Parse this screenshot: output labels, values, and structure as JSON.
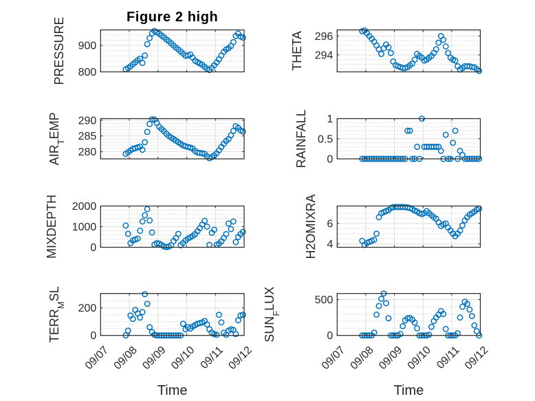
{
  "chart_data": {
    "type": "scatter",
    "title": "Figure 2 high",
    "xlabel": "Time",
    "xlim": [
      7,
      12
    ],
    "xticks": [
      7,
      8,
      9,
      10,
      11,
      12
    ],
    "xtick_labels": [
      "09/07",
      "09/08",
      "09/09",
      "09/10",
      "09/11",
      "09/12"
    ],
    "grid": true,
    "legend": "none",
    "marker": "open-circle",
    "color": "#0072BD",
    "x": [
      7.875,
      7.958,
      8.042,
      8.125,
      8.208,
      8.292,
      8.375,
      8.458,
      8.542,
      8.625,
      8.708,
      8.792,
      8.875,
      8.958,
      9.042,
      9.125,
      9.208,
      9.292,
      9.375,
      9.458,
      9.542,
      9.625,
      9.708,
      9.792,
      9.875,
      9.958,
      10.042,
      10.125,
      10.208,
      10.292,
      10.375,
      10.458,
      10.542,
      10.625,
      10.708,
      10.792,
      10.875,
      10.958,
      11.042,
      11.125,
      11.208,
      11.292,
      11.375,
      11.458,
      11.542,
      11.625,
      11.708,
      11.792,
      11.875,
      11.958
    ],
    "panels": [
      {
        "ylabel": {
          "text": "PRESSURE"
        },
        "ylim": [
          800,
          959
        ],
        "yticks": [
          800,
          900
        ],
        "ytick_labels": [
          "800",
          "900"
        ],
        "values": [
          810,
          815,
          821,
          829,
          836,
          844,
          850,
          834,
          862,
          905,
          928,
          946,
          955,
          950,
          945,
          938,
          931,
          923,
          916,
          908,
          900,
          892,
          885,
          877,
          869,
          861,
          862,
          866,
          854,
          842,
          837,
          832,
          827,
          819,
          812,
          807,
          815,
          825,
          836,
          848,
          862,
          876,
          885,
          890,
          898,
          913,
          936,
          945,
          934,
          930
        ]
      },
      {
        "ylabel": {
          "text": "THETA"
        },
        "ylim": [
          292.2,
          296.65
        ],
        "yticks": [
          294,
          296
        ],
        "ytick_labels": [
          "294",
          "296"
        ],
        "values": [
          296.5,
          296.6,
          296.3,
          296.0,
          295.7,
          295.4,
          295.0,
          294.6,
          294.1,
          294.7,
          295.1,
          294.8,
          294.2,
          293.3,
          292.9,
          292.8,
          292.7,
          292.6,
          292.6,
          292.7,
          292.9,
          293.1,
          293.5,
          294.1,
          293.9,
          293.7,
          293.4,
          293.5,
          293.7,
          293.9,
          294.2,
          294.6,
          295.3,
          296.0,
          295.6,
          294.9,
          294.2,
          293.7,
          293.5,
          293.4,
          292.8,
          292.45,
          292.6,
          292.8,
          292.8,
          292.8,
          292.7,
          292.7,
          292.5,
          292.3
        ]
      },
      {
        "ylabel": {
          "text": "AIR",
          "sub": "T",
          "tail": "EMP"
        },
        "ylim": [
          277.7,
          290.5
        ],
        "yticks": [
          280,
          285,
          290
        ],
        "ytick_labels": [
          "280",
          "285",
          "290"
        ],
        "values": [
          279.3,
          279.8,
          280.4,
          280.9,
          281.1,
          281.4,
          281.6,
          280.6,
          283.0,
          286.3,
          288.8,
          290.3,
          290.2,
          289.1,
          287.9,
          287.2,
          286.5,
          285.7,
          285.0,
          284.5,
          284.0,
          283.5,
          283.0,
          282.5,
          282.0,
          281.7,
          281.5,
          281.3,
          281.0,
          280.2,
          279.7,
          279.6,
          279.5,
          279.3,
          278.5,
          277.9,
          278.3,
          278.8,
          279.5,
          280.4,
          281.5,
          282.5,
          283.4,
          284.0,
          285.2,
          286.6,
          288.1,
          287.6,
          286.8,
          286.4
        ]
      },
      {
        "ylabel": {
          "text": "RAINFALL"
        },
        "ylim": [
          0,
          1
        ],
        "yticks": [
          0,
          0.5,
          1
        ],
        "ytick_labels": [
          "0",
          "0.5",
          "1"
        ],
        "values": [
          0,
          0,
          0,
          0,
          0,
          0,
          0,
          0,
          0,
          0,
          0,
          0,
          0,
          0,
          0,
          0,
          0,
          0,
          0,
          0.7,
          0.7,
          0,
          0,
          0.3,
          0,
          1.0,
          0.3,
          0.3,
          0.3,
          0.3,
          0.3,
          0.3,
          0.3,
          0.2,
          0,
          0.6,
          0,
          0,
          0.4,
          0.7,
          0,
          0.2,
          0.1,
          0,
          0,
          0,
          0,
          0,
          0,
          0
        ]
      },
      {
        "ylabel": {
          "text": "MIXDEPTH"
        },
        "ylim": [
          0,
          2000
        ],
        "yticks": [
          0,
          1000,
          2000
        ],
        "ytick_labels": [
          "0",
          "1000",
          "2000"
        ],
        "values": [
          1050,
          650,
          200,
          330,
          380,
          420,
          800,
          1250,
          1550,
          1850,
          1300,
          720,
          130,
          200,
          180,
          120,
          40,
          10,
          30,
          100,
          300,
          450,
          650,
          100,
          200,
          330,
          420,
          480,
          550,
          640,
          780,
          930,
          1100,
          1280,
          1000,
          120,
          700,
          850,
          120,
          180,
          290,
          450,
          640,
          1150,
          880,
          1250,
          250,
          500,
          640,
          750
        ]
      },
      {
        "ylabel": {
          "text": "H2OMIXRA"
        },
        "ylim": [
          3.67,
          7.7
        ],
        "yticks": [
          4,
          6
        ],
        "ytick_labels": [
          "4",
          "6"
        ],
        "values": [
          4.3,
          3.9,
          4.1,
          4.2,
          4.3,
          4.4,
          5.0,
          6.6,
          7.0,
          7.1,
          7.2,
          7.3,
          7.5,
          7.6,
          7.6,
          7.6,
          7.6,
          7.6,
          7.6,
          7.55,
          7.5,
          7.4,
          7.25,
          7.15,
          7.0,
          6.9,
          7.0,
          7.2,
          7.0,
          6.8,
          6.6,
          6.45,
          6.1,
          5.75,
          5.9,
          6.0,
          5.6,
          5.3,
          5.0,
          4.75,
          5.0,
          5.3,
          5.8,
          6.3,
          6.6,
          6.85,
          7.0,
          7.15,
          7.35,
          7.45
        ]
      },
      {
        "ylabel": {
          "text": "TERR",
          "sub": "M",
          "tail": "SL"
        },
        "ylim": [
          0,
          305
        ],
        "yticks": [
          0,
          200
        ],
        "ytick_labels": [
          "0",
          "200"
        ],
        "values": [
          0,
          35,
          145,
          120,
          185,
          160,
          130,
          170,
          300,
          230,
          60,
          25,
          5,
          0,
          0,
          0,
          0,
          0,
          0,
          0,
          0,
          0,
          0,
          0,
          85,
          45,
          60,
          50,
          65,
          75,
          85,
          90,
          95,
          105,
          80,
          45,
          20,
          10,
          5,
          150,
          95,
          20,
          5,
          35,
          45,
          40,
          10,
          110,
          145,
          150
        ]
      },
      {
        "ylabel": {
          "text": "SUN",
          "sub": "F",
          "tail": "LUX"
        },
        "ylim": [
          0,
          585
        ],
        "yticks": [
          0,
          500
        ],
        "ytick_labels": [
          "0",
          "500"
        ],
        "values": [
          0,
          0,
          0,
          0,
          0,
          40,
          290,
          410,
          510,
          585,
          450,
          240,
          0,
          0,
          0,
          0,
          20,
          130,
          210,
          240,
          245,
          220,
          180,
          100,
          0,
          0,
          0,
          0,
          10,
          120,
          200,
          250,
          290,
          340,
          300,
          90,
          0,
          0,
          0,
          0,
          30,
          250,
          400,
          470,
          440,
          360,
          270,
          140,
          60,
          0
        ]
      }
    ]
  }
}
